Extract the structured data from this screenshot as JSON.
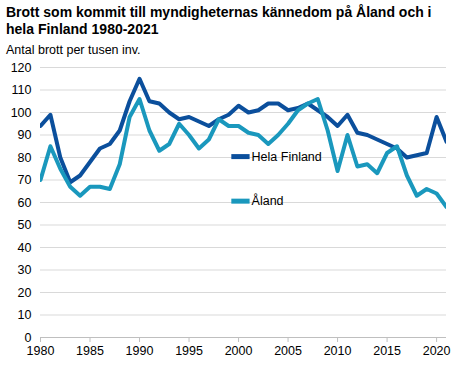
{
  "chart_data": {
    "type": "line",
    "title": "Brott som kommit till myndigheternas kännedom på Åland och i hela Finland 1980-2021",
    "subtitle": "Antal brott per tusen inv.",
    "x": [
      1980,
      1981,
      1982,
      1983,
      1984,
      1985,
      1986,
      1987,
      1988,
      1989,
      1990,
      1991,
      1992,
      1993,
      1994,
      1995,
      1996,
      1997,
      1998,
      1999,
      2000,
      2001,
      2002,
      2003,
      2004,
      2005,
      2006,
      2007,
      2008,
      2009,
      2010,
      2011,
      2012,
      2013,
      2014,
      2015,
      2016,
      2017,
      2018,
      2019,
      2020,
      2021
    ],
    "series": [
      {
        "name": "Hela Finland",
        "color": "#0b4f9c",
        "values": [
          94,
          99,
          80,
          69,
          72,
          78,
          84,
          86,
          92,
          105,
          115,
          105,
          104,
          100,
          97,
          98,
          96,
          94,
          97,
          99,
          103,
          100,
          101,
          104,
          104,
          101,
          102,
          104,
          101,
          98,
          94,
          99,
          91,
          90,
          88,
          86,
          84,
          80,
          81,
          82,
          98,
          87
        ]
      },
      {
        "name": "Åland",
        "color": "#1a98bd",
        "values": [
          70,
          85,
          75,
          67,
          63,
          67,
          67,
          66,
          77,
          98,
          106,
          92,
          83,
          86,
          95,
          90,
          84,
          88,
          97,
          94,
          94,
          91,
          90,
          86,
          90,
          95,
          101,
          104,
          106,
          92,
          74,
          90,
          76,
          77,
          73,
          82,
          85,
          72,
          63,
          66,
          64,
          58
        ]
      }
    ],
    "xlim": [
      1980,
      2021
    ],
    "xticks": [
      1980,
      1985,
      1990,
      1995,
      2000,
      2005,
      2010,
      2015,
      2020
    ],
    "ylim": [
      0,
      120
    ],
    "yticks": [
      0,
      10,
      20,
      30,
      40,
      50,
      60,
      70,
      80,
      90,
      100,
      110,
      120
    ],
    "grid": true,
    "legend": "center"
  }
}
